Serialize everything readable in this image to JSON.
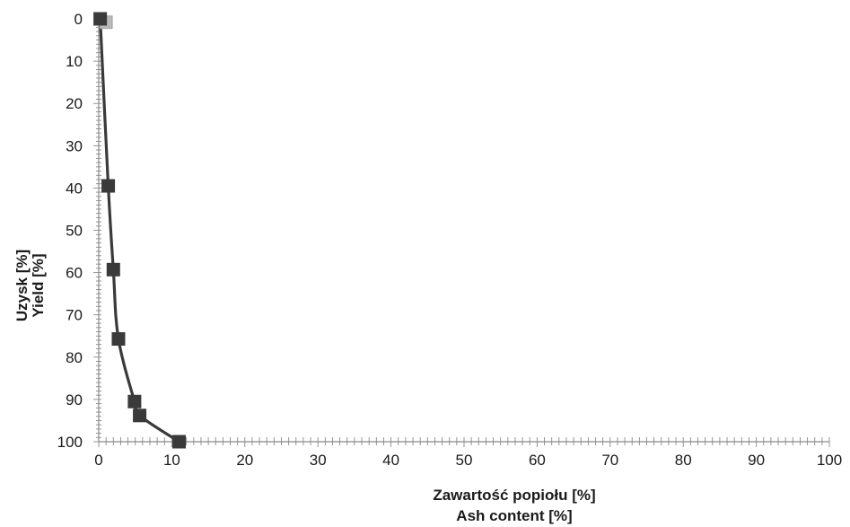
{
  "chart_data": {
    "type": "line",
    "title": "",
    "xlabel": [
      "Zawartość popiołu [%]",
      "Ash content [%]"
    ],
    "ylabel": [
      "Uzysk [%]",
      "Yield [%]"
    ],
    "xlim": [
      0,
      100
    ],
    "ylim": [
      0,
      100
    ],
    "y_inverted": true,
    "x_ticks": [
      0,
      10,
      20,
      30,
      40,
      50,
      60,
      70,
      80,
      90,
      100
    ],
    "y_ticks": [
      0,
      10,
      20,
      30,
      40,
      50,
      60,
      70,
      80,
      90,
      100
    ],
    "grid": false,
    "series": [
      {
        "x": [
          0.2,
          1.3,
          2.0,
          2.7,
          4.9,
          5.6,
          11.0
        ],
        "y": [
          0,
          39.5,
          59.3,
          75.7,
          90.5,
          93.8,
          100
        ],
        "color": "#3a3a3a",
        "marker": "square"
      },
      {
        "x": [
          1.0
        ],
        "y": [
          0.8
        ],
        "color": "#b8b8b8",
        "marker": "triangle"
      }
    ]
  }
}
